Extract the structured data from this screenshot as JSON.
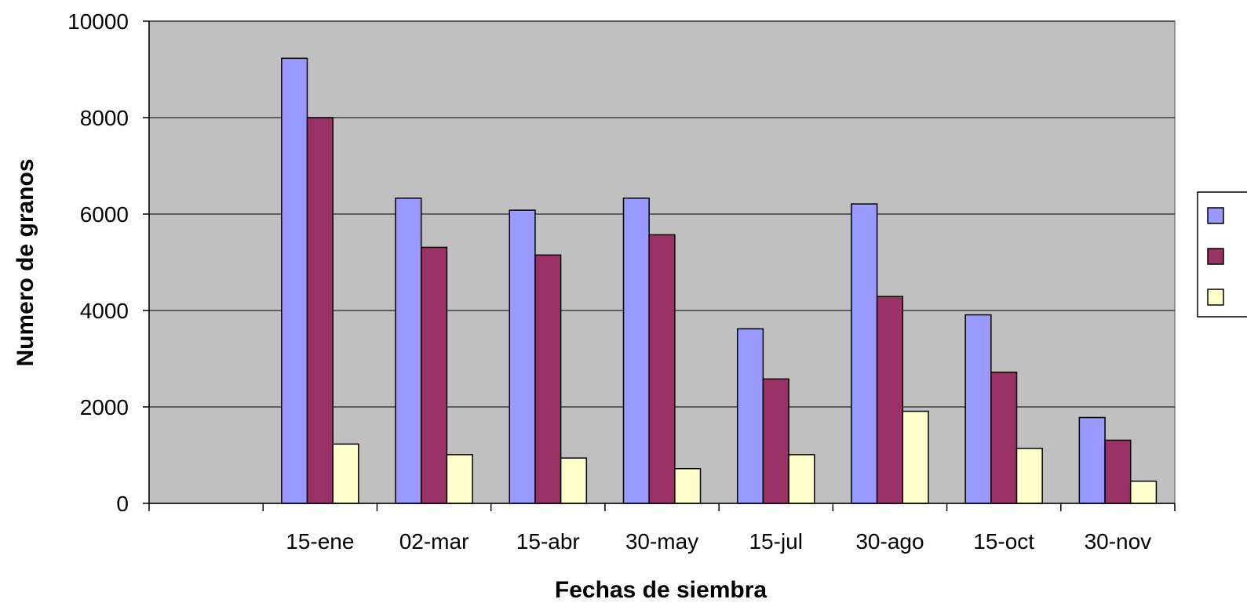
{
  "chart_data": {
    "type": "bar",
    "title": "",
    "xlabel": "Fechas de siembra",
    "ylabel": "Numero de  granos",
    "categories": [
      "",
      "15-ene",
      "02-mar",
      "15-abr",
      "30-may",
      "15-jul",
      "30-ago",
      "15-oct",
      "30-nov"
    ],
    "series": [
      {
        "values": [
          null,
          9230,
          6330,
          6080,
          6330,
          3620,
          6210,
          3910,
          1780
        ]
      },
      {
        "values": [
          null,
          8000,
          5310,
          5150,
          5570,
          2580,
          4290,
          2720,
          1310
        ]
      },
      {
        "values": [
          null,
          1230,
          1010,
          940,
          720,
          1010,
          1910,
          1140,
          460
        ]
      }
    ],
    "ylim": [
      0,
      10000
    ],
    "yticks": [
      0,
      2000,
      4000,
      6000,
      8000,
      10000
    ],
    "grid": true,
    "legend": "right",
    "colors": {
      "plot_background": "#C0C0C0",
      "series": [
        "#9999FF",
        "#993366",
        "#FFFFCC"
      ],
      "gridline": "#000000"
    }
  }
}
